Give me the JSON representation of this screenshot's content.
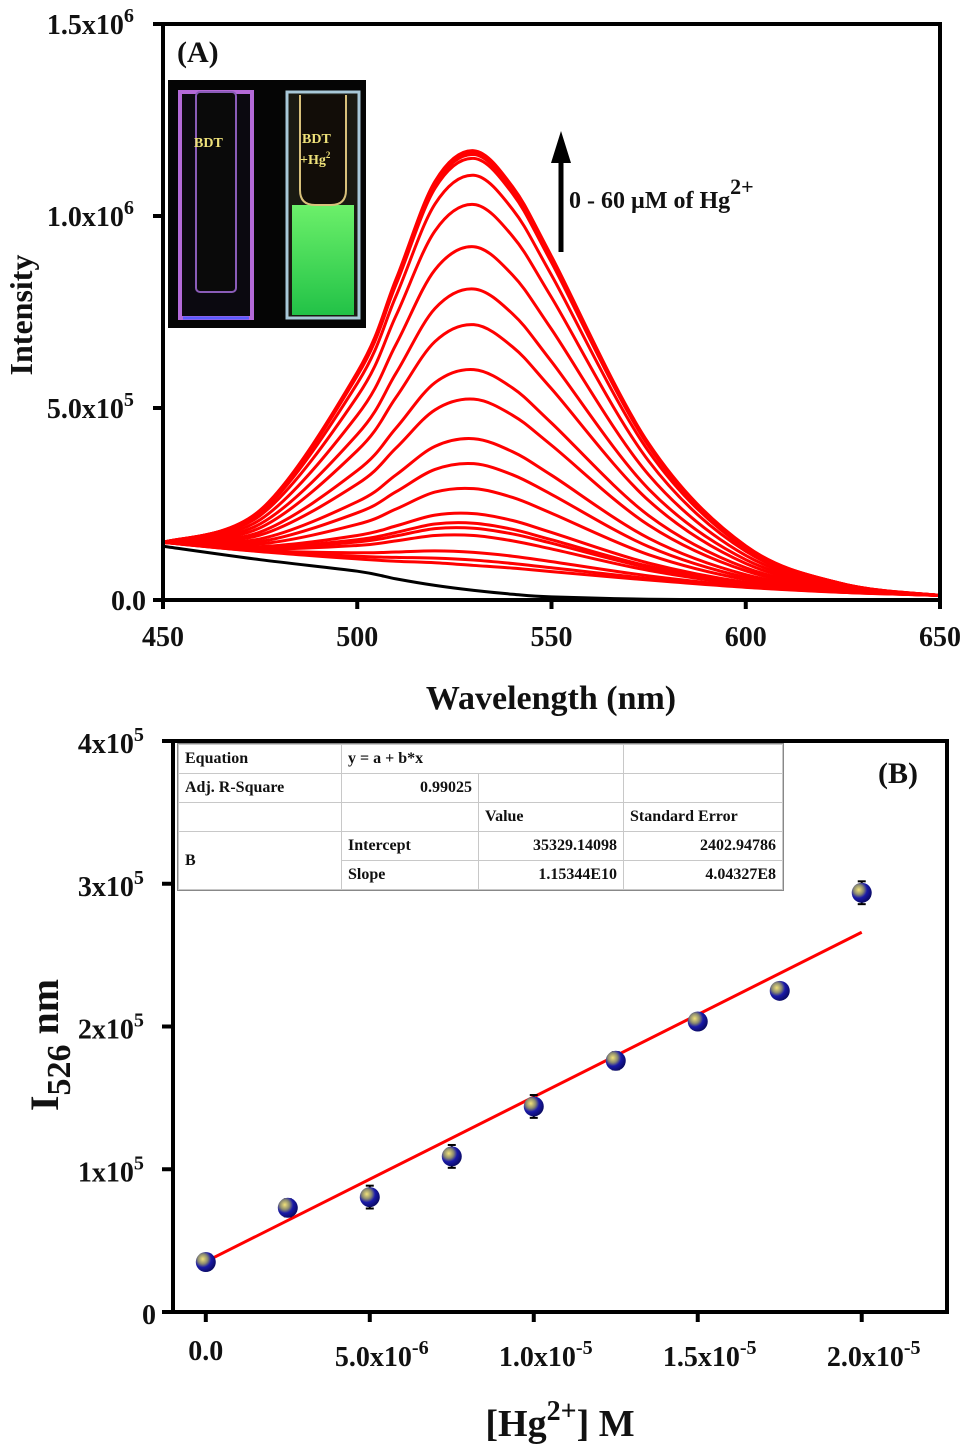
{
  "chart_data": [
    {
      "type": "line",
      "panel_label": "(A)",
      "xlabel": "Wavelength (nm)",
      "ylabel": "Intensity",
      "xlim": [
        450,
        650
      ],
      "ylim": [
        0,
        1500000
      ],
      "xticks": [
        {
          "value": 450,
          "label": "450"
        },
        {
          "value": 500,
          "label": "500"
        },
        {
          "value": 550,
          "label": "550"
        },
        {
          "value": 600,
          "label": "600"
        },
        {
          "value": 650,
          "label": "650"
        }
      ],
      "yticks": [
        {
          "value": 0,
          "base": "0.0",
          "exp": ""
        },
        {
          "value": 500000,
          "base": "5.0x10",
          "exp": "5"
        },
        {
          "value": 1000000,
          "base": "1.0x10",
          "exp": "6"
        },
        {
          "value": 1500000,
          "base": "1.5x10",
          "exp": "6"
        }
      ],
      "grid": false,
      "annotation": {
        "text": "0 - 60 µM of Hg",
        "sup": "2+",
        "arrow": "up"
      },
      "inset": {
        "left_label": "BDT",
        "right_label_1": "BDT",
        "right_label_2": "+Hg",
        "right_label_sup": "2",
        "left_glow": "#c77dff",
        "right_fluor": "#2bd64a"
      },
      "colors": {
        "titration": "#ff0000",
        "blank": "#000000"
      },
      "x": [
        450,
        475,
        500,
        510,
        520,
        530,
        540,
        550,
        575,
        600,
        625,
        650
      ],
      "series": [
        {
          "color": "#000000",
          "y": [
            140000.0,
            105000.0,
            75000.0,
            55000.0,
            38000.0,
            25000.0,
            15000.0,
            8000.0,
            2000.0,
            0,
            0,
            0
          ]
        },
        {
          "color": "#ff0000",
          "y": [
            150000.0,
            126000.0,
            107000.0,
            101000.0,
            97000.0,
            90000.0,
            83000.0,
            74000.0,
            52000.0,
            33000.0,
            20000.0,
            12000.0
          ]
        },
        {
          "color": "#ff0000",
          "y": [
            150000.0,
            127000.0,
            114000.0,
            111000.0,
            109000.0,
            104000.0,
            95000.0,
            84000.0,
            56000.0,
            34000.0,
            20000.0,
            12000.0
          ]
        },
        {
          "color": "#ff0000",
          "y": [
            150000.0,
            129000.0,
            123000.0,
            125000.0,
            128000.0,
            124000.0,
            114000.0,
            100000.0,
            63000.0,
            36000.0,
            21000.0,
            12000.0
          ]
        },
        {
          "color": "#ff0000",
          "y": [
            150000.0,
            133000.0,
            142000.0,
            154000.0,
            168000.0,
            168000.0,
            154000.0,
            133000.0,
            77000.0,
            40000.0,
            22000.0,
            12000.0
          ]
        },
        {
          "color": "#ff0000",
          "y": [
            150000.0,
            135000.0,
            151000.0,
            167000.0,
            186000.0,
            187000.0,
            172000.0,
            148000.0,
            84000.0,
            42000.0,
            22000.0,
            12000.0
          ]
        },
        {
          "color": "#ff0000",
          "y": [
            150000.0,
            137000.0,
            157000.0,
            176000.0,
            198000.0,
            200000.0,
            184000.0,
            157000.0,
            88000.0,
            44000.0,
            22000.0,
            12000.0
          ]
        },
        {
          "color": "#ff0000",
          "y": [
            150000.0,
            139000.0,
            168000.0,
            193000.0,
            221000.0,
            225000.0,
            207000.0,
            176000.0,
            96000.0,
            46000.0,
            23000.0,
            12000.0
          ]
        },
        {
          "color": "#ff0000",
          "y": [
            150000.0,
            146000.0,
            197000.0,
            237000.0,
            281000.0,
            290000.0,
            267000.0,
            226000.0,
            118000.0,
            53000.0,
            24000.0,
            12000.0
          ]
        },
        {
          "color": "#ff0000",
          "y": [
            150000.0,
            152000.0,
            227000.0,
            282000.0,
            340000.0,
            355000.0,
            326000.0,
            275000.0,
            139000.0,
            59000.0,
            25000.0,
            12000.0
          ]
        },
        {
          "color": "#ff0000",
          "y": [
            150000.0,
            159000.0,
            256000.0,
            326000.0,
            400000.0,
            420000.0,
            386000.0,
            325000.0,
            161000.0,
            66000.0,
            27000.0,
            12000.0
          ]
        },
        {
          "color": "#ff0000",
          "y": [
            150000.0,
            169000.0,
            302000.0,
            396000.0,
            495000.0,
            523000.0,
            481000.0,
            403000.0,
            195000.0,
            76000.0,
            29000.0,
            12000.0
          ]
        },
        {
          "color": "#ff0000",
          "y": [
            150000.0,
            177000.0,
            337000.0,
            448000.0,
            566000.0,
            600000.0,
            552000.0,
            461000.0,
            220000.0,
            84000.0,
            30000.0,
            12000.0
          ]
        },
        {
          "color": "#ff0000",
          "y": [
            150000.0,
            188000.0,
            389000.0,
            528000.0,
            673000.0,
            717000.0,
            659000.0,
            550000.0,
            259000.0,
            95000.0,
            33000.0,
            12000.0
          ]
        },
        {
          "color": "#ff0000",
          "y": [
            150000.0,
            198000.0,
            431000.0,
            591000.0,
            759000.0,
            810000.0,
            745000.0,
            621000.0,
            289000.0,
            105000.0,
            35000.0,
            12000.0
          ]
        },
        {
          "color": "#ff0000",
          "y": [
            150000.0,
            209000.0,
            481000.0,
            666000.0,
            860000.0,
            920000.0,
            846000.0,
            705000.0,
            326000.0,
            116000.0,
            37000.0,
            12000.0
          ]
        },
        {
          "color": "#ff0000",
          "y": [
            150000.0,
            220000.0,
            530000.0,
            741000.0,
            961000.0,
            1030000.0,
            947000.0,
            788000.0,
            362000.0,
            127000.0,
            39000.0,
            12000.0
          ]
        },
        {
          "color": "#ff0000",
          "y": [
            150000.0,
            227000.0,
            564000.0,
            792000.0,
            1031000.0,
            1106000.0,
            1017000.0,
            846000.0,
            387000.0,
            134000.0,
            40000.0,
            12000.0
          ]
        },
        {
          "color": "#ff0000",
          "y": [
            150000.0,
            232000.0,
            584000.0,
            822000.0,
            1072000.0,
            1150000.0,
            1058000.0,
            879000.0,
            401000.0,
            139000.0,
            41000.0,
            12000.0
          ]
        },
        {
          "color": "#ff0000",
          "y": [
            150000.0,
            233000.0,
            589000.0,
            829000.0,
            1081000.0,
            1160000.0,
            1067000.0,
            887000.0,
            405000.0,
            140000.0,
            42000.0,
            12000.0
          ]
        },
        {
          "color": "#ff0000",
          "y": [
            150000.0,
            233000.0,
            591000.0,
            832000.0,
            1086000.0,
            1165000.0,
            1072000.0,
            891000.0,
            406000.0,
            140000.0,
            42000.0,
            12000.0
          ]
        },
        {
          "color": "#ff0000",
          "y": [
            150000.0,
            234000.0,
            593000.0,
            836000.0,
            1090000.0,
            1170000.0,
            1076000.0,
            895000.0,
            408000.0,
            141000.0,
            42000.0,
            12000.0
          ]
        }
      ]
    },
    {
      "type": "scatter",
      "panel_label": "(B)",
      "xlabel": {
        "pre": "[Hg",
        "sup": "2+",
        "post": "] M"
      },
      "ylabel": {
        "main": "I",
        "sub": "526",
        "post": " nm"
      },
      "xlim": [
        -1e-06,
        2.26e-05
      ],
      "ylim": [
        0,
        400000
      ],
      "xticks": [
        {
          "value": 0,
          "base": "0.0",
          "exp": ""
        },
        {
          "value": 5e-06,
          "base": "5.0x10",
          "exp": "-6"
        },
        {
          "value": 1e-05,
          "base": "1.0x10",
          "exp": "-5"
        },
        {
          "value": 1.5e-05,
          "base": "1.5x10",
          "exp": "-5"
        },
        {
          "value": 2e-05,
          "base": "2.0x10",
          "exp": "-5"
        }
      ],
      "yticks": [
        {
          "value": 0,
          "base": "0",
          "exp": ""
        },
        {
          "value": 100000,
          "base": "1x10",
          "exp": "5"
        },
        {
          "value": 200000,
          "base": "2x10",
          "exp": "5"
        },
        {
          "value": 300000,
          "base": "3x10",
          "exp": "5"
        },
        {
          "value": 400000,
          "base": "4x10",
          "exp": "5"
        }
      ],
      "grid": false,
      "colors": {
        "marker": "#1a1aa8",
        "marker_highlight": "#e8d870",
        "fit": "#ff0000"
      },
      "points": {
        "x": [
          0,
          2.5e-06,
          5e-06,
          7.5e-06,
          1e-05,
          1.25e-05,
          1.5e-05,
          1.75e-05,
          2e-05
        ],
        "y": [
          35000,
          73000,
          80500,
          109000,
          144000,
          176000,
          203500,
          225000,
          293700
        ],
        "err": [
          3000,
          6000,
          8000,
          8000,
          8000,
          6000,
          5000,
          5000,
          8000
        ]
      },
      "fit": {
        "intercept": 35329.14098,
        "slope": 11534400000.0,
        "x_range": [
          0,
          2e-05
        ]
      },
      "fit_table": {
        "equation_label": "Equation",
        "equation": "y = a + b*x",
        "r2_label": "Adj. R-Square",
        "r2": "0.99025",
        "value_header": "Value",
        "stderr_header": "Standard Error",
        "group": "B",
        "intercept_label": "Intercept",
        "intercept_value": "35329.14098",
        "intercept_err": "2402.94786",
        "slope_label": "Slope",
        "slope_value": "1.15344E10",
        "slope_err": "4.04327E8"
      }
    }
  ]
}
